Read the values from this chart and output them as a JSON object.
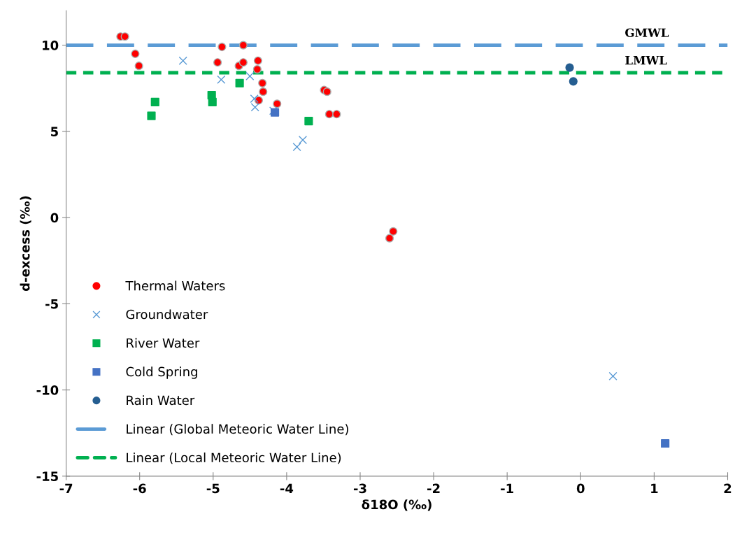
{
  "chart_data": {
    "type": "scatter",
    "xlabel": "δ18O (‰)",
    "ylabel": "d-excess (‰)",
    "xlim": [
      -7,
      2
    ],
    "ylim": [
      -15,
      12
    ],
    "xticks": [
      -7,
      -6,
      -5,
      -4,
      -3,
      -2,
      -1,
      0,
      1,
      2
    ],
    "yticks": [
      -15,
      -10,
      -5,
      0,
      5,
      10
    ],
    "grid": false,
    "legend": "bottom left",
    "series": [
      {
        "name": "Thermal Waters",
        "marker": "circle",
        "color": "#ff0000",
        "x": [
          -6.26,
          -6.2,
          -6.06,
          -6.01,
          -4.88,
          -4.59,
          -4.94,
          -4.65,
          -4.59,
          -4.39,
          -4.4,
          -4.33,
          -4.32,
          -4.38,
          -4.13,
          -3.49,
          -3.45,
          -3.42,
          -3.32,
          -2.6,
          -2.55
        ],
        "values": [
          10.5,
          10.5,
          9.5,
          8.8,
          9.9,
          10.0,
          9.0,
          8.8,
          9.0,
          9.1,
          8.6,
          7.8,
          7.3,
          6.8,
          6.6,
          7.4,
          7.3,
          6.0,
          6.0,
          -1.2,
          -0.8
        ]
      },
      {
        "name": "Groundwater",
        "marker": "cross",
        "color": "#5b9bd5",
        "x": [
          -5.41,
          -4.89,
          -4.5,
          -4.44,
          -4.43,
          -4.18,
          -3.78,
          -3.86,
          0.44
        ],
        "values": [
          9.1,
          8.0,
          8.2,
          6.9,
          6.4,
          6.2,
          4.5,
          4.1,
          -9.2
        ]
      },
      {
        "name": "River Water",
        "marker": "square",
        "color": "#00b050",
        "x": [
          -5.79,
          -5.84,
          -5.02,
          -5.01,
          -4.64,
          -3.7
        ],
        "values": [
          6.7,
          5.9,
          7.1,
          6.7,
          7.8,
          5.6
        ]
      },
      {
        "name": "Cold Spring",
        "marker": "square",
        "color": "#4472c4",
        "x": [
          -4.16,
          1.15
        ],
        "values": [
          6.1,
          -13.1
        ]
      },
      {
        "name": "Rain Water",
        "marker": "circle",
        "color": "#255e91",
        "x": [
          -0.15,
          -0.1
        ],
        "values": [
          8.7,
          7.9
        ]
      },
      {
        "name": "Linear (Global Meteoric Water Line)",
        "type": "line",
        "line_style": "dashed",
        "marker": "none",
        "color": "#5b9bd5",
        "x": [
          -7,
          2
        ],
        "values": [
          10,
          10
        ]
      },
      {
        "name": "Linear (Local Meteoric Water Line)",
        "type": "line",
        "line_style": "dotted",
        "marker": "none",
        "color": "#00b050",
        "x": [
          -7,
          2
        ],
        "values": [
          8.4,
          8.4
        ]
      }
    ],
    "annotations": [
      {
        "text": "GMWL",
        "x": 0.6,
        "y": 10
      },
      {
        "text": "LMWL",
        "x": 0.6,
        "y": 8.4
      }
    ]
  }
}
